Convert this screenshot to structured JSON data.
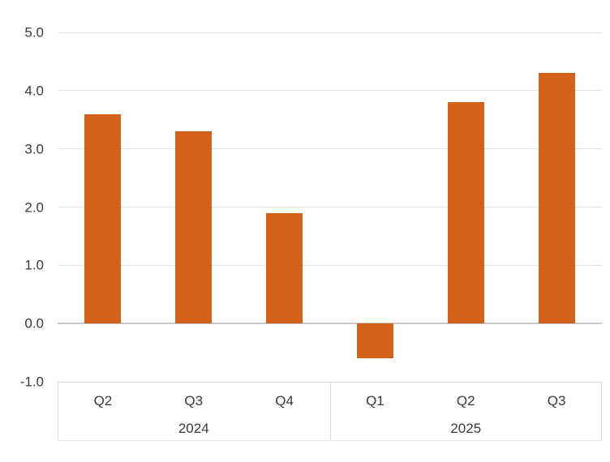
{
  "chart_data": {
    "type": "bar",
    "title": "",
    "xlabel": "",
    "ylabel": "",
    "categories": [
      "Q2",
      "Q3",
      "Q4",
      "Q1",
      "Q2",
      "Q3"
    ],
    "values": [
      3.6,
      3.3,
      1.9,
      -0.6,
      3.8,
      4.3
    ],
    "category_groups": [
      {
        "label": "2024",
        "start": 0,
        "end": 2
      },
      {
        "label": "2025",
        "start": 3,
        "end": 5
      }
    ],
    "ylim": [
      -1.0,
      5.0
    ],
    "ytick_step": 1.0,
    "ytick_labels": [
      "5.0",
      "4.0",
      "3.0",
      "2.0",
      "1.0",
      "0.0",
      "-1.0"
    ],
    "grid": "horizontal-on",
    "legend": "none",
    "colors": {
      "bar_fill": "#d3611a",
      "gridline": "#e3e3e3",
      "zero_line": "#c7c7c7",
      "separator": "#d9d9d9",
      "text": "#3a3a3a",
      "background": "#ffffff"
    }
  }
}
